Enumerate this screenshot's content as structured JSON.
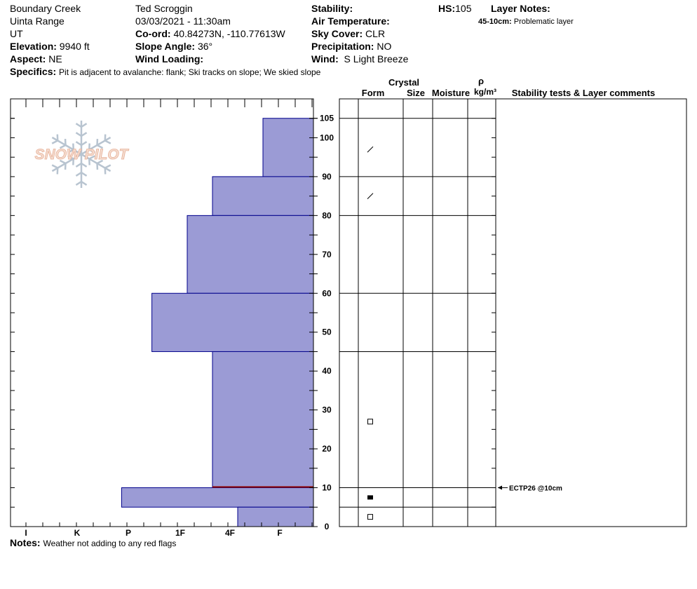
{
  "header": {
    "location": "Boundary Creek",
    "range": "Uinta Range",
    "state": "UT",
    "elevation_label": "Elevation:",
    "elevation": "9940 ft",
    "aspect_label": "Aspect:",
    "aspect": "NE",
    "observer": "Ted Scroggin",
    "datetime": "03/03/2021 - 11:30am",
    "coord_label": "Co-ord:",
    "coord": "40.84273N, -110.77613W",
    "slope_label": "Slope Angle:",
    "slope": "36°",
    "wind_loading_label": "Wind Loading:",
    "wind_loading": "",
    "stability_label": "Stability:",
    "stability": "",
    "air_temp_label": "Air Temperature:",
    "air_temp": "",
    "sky_label": "Sky Cover:",
    "sky": "CLR",
    "precip_label": "Precipitation:",
    "precip": "NO",
    "wind_label": "Wind:",
    "wind": "S Light Breeze",
    "hs_label": "HS:",
    "hs": "105",
    "layer_notes_label": "Layer Notes:",
    "layer_note_range": "45-10cm:",
    "layer_note_text": "Problematic layer",
    "specifics_label": "Specifics:",
    "specifics": "Pit is adjacent to avalanche: flank;  Ski tracks on slope;  We skied slope",
    "notes_label": "Notes:",
    "notes": "Weather not adding to any red flags"
  },
  "columns": {
    "crystal": "Crystal",
    "form": "Form",
    "size": "Size",
    "moisture": "Moisture",
    "rho": "ρ",
    "density_unit": "kg/m³",
    "stability": "Stability tests & Layer comments"
  },
  "logo": {
    "text": "SNOW PILOT"
  },
  "colors": {
    "hardness_fill": "#9b9bd5",
    "hardness_stroke": "#00008b",
    "weak_layer": "#8b0000"
  },
  "chart_data": {
    "type": "bar",
    "orientation": "horizontal",
    "y_unit": "cm",
    "ylim": [
      0,
      105
    ],
    "y_ticks": [
      0,
      10,
      20,
      30,
      40,
      50,
      60,
      70,
      80,
      90,
      100,
      105
    ],
    "hardness_ticks": [
      "I",
      "K",
      "P",
      "1F",
      "4F",
      "F"
    ],
    "layers": [
      {
        "top": 105,
        "bottom": 90,
        "hardness": "F"
      },
      {
        "top": 90,
        "bottom": 80,
        "hardness": "4F"
      },
      {
        "top": 80,
        "bottom": 60,
        "hardness": "1F-"
      },
      {
        "top": 60,
        "bottom": 45,
        "hardness": "1F+"
      },
      {
        "top": 45,
        "bottom": 10,
        "hardness": "4F"
      },
      {
        "top": 10,
        "bottom": 5,
        "hardness": "P+"
      },
      {
        "top": 5,
        "bottom": 0,
        "hardness": "4F+"
      }
    ],
    "hardness_index": {
      "F": 1,
      "4F": 2,
      "1F-": 2.5,
      "1F+": 3.2,
      "P+": 3.8,
      "4F+": 1.5
    },
    "layer_boundaries": [
      105,
      90,
      80,
      60,
      45,
      10,
      5,
      0
    ],
    "crystal_forms": [
      {
        "y": 97,
        "form": "precipitation-particles"
      },
      {
        "y": 85,
        "form": "precipitation-particles"
      },
      {
        "y": 27,
        "form": "faceted"
      },
      {
        "y": 7.5,
        "form": "faceted-rounded"
      },
      {
        "y": 2.5,
        "form": "faceted"
      }
    ],
    "weak_layer_depth": 10,
    "stability_tests": [
      {
        "y": 10,
        "label": "ECTP26 @10cm"
      }
    ]
  }
}
